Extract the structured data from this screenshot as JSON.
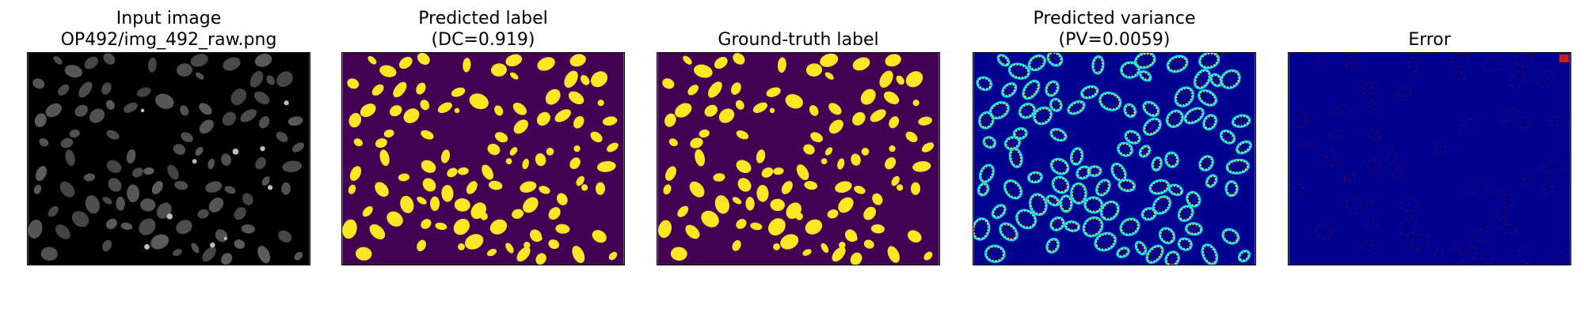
{
  "panels": [
    {
      "id": "input",
      "title_lines": [
        "Input image",
        "OP492/img_492_raw.png"
      ]
    },
    {
      "id": "pred",
      "title_lines": [
        "Predicted label",
        "(DC=0.919)"
      ]
    },
    {
      "id": "gt",
      "title_lines": [
        "Ground-truth label"
      ]
    },
    {
      "id": "var",
      "title_lines": [
        "Predicted variance",
        "(PV=0.0059)"
      ]
    },
    {
      "id": "err",
      "title_lines": [
        "Error"
      ]
    }
  ],
  "colors": {
    "input_bg": "#000000",
    "label_bg": "#440154",
    "label_fg": "#fde725",
    "jet_bg": "#00008f",
    "jet_cyan": "#10e0ff",
    "jet_yellow": "#f0ff20",
    "jet_red": "#ff2000",
    "error_ring": "#8a0010"
  }
}
